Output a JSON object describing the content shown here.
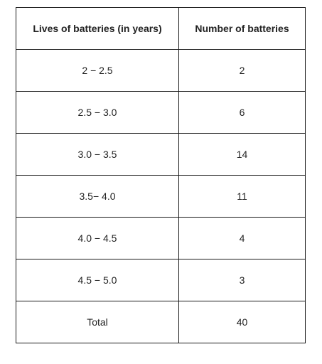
{
  "table": {
    "headers": [
      "Lives of batteries (in years)",
      "Number of batteries"
    ],
    "rows": [
      [
        "2 − 2.5",
        "2"
      ],
      [
        "2.5 − 3.0",
        "6"
      ],
      [
        "3.0 − 3.5",
        "14"
      ],
      [
        "3.5− 4.0",
        "11"
      ],
      [
        "4.0 − 4.5",
        "4"
      ],
      [
        "4.5 − 5.0",
        "3"
      ],
      [
        "Total",
        "40"
      ]
    ]
  }
}
